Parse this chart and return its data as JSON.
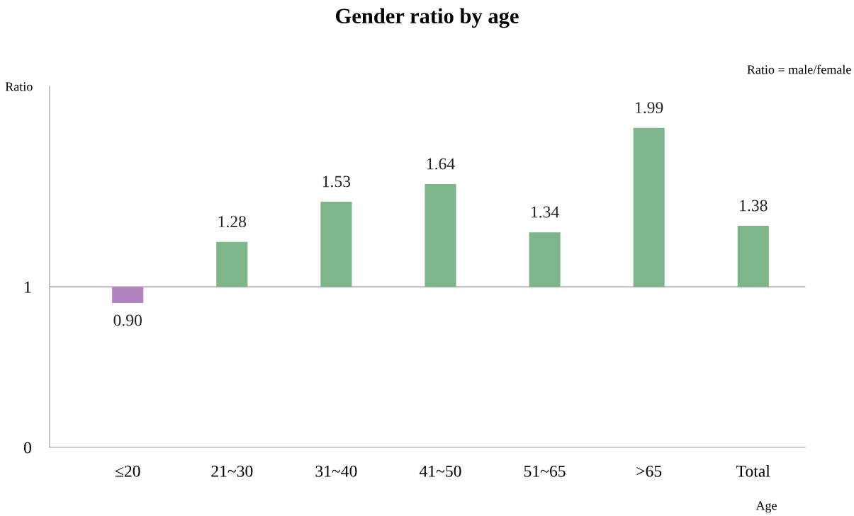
{
  "chart_data": {
    "type": "bar",
    "title": "Gender ratio by age",
    "xlabel": "Age",
    "ylabel": "Ratio",
    "annotations": [
      "Ratio = male/female"
    ],
    "categories": [
      "≤20",
      "21~30",
      "31~40",
      "41~50",
      "51~65",
      ">65",
      "Total"
    ],
    "base": [
      1,
      1,
      1,
      1,
      1,
      1,
      1
    ],
    "values": [
      -0.1,
      0.28,
      0.53,
      0.64,
      0.34,
      0.99,
      0.38
    ],
    "value_labels": [
      "0.90",
      "1.28",
      "1.53",
      "1.64",
      "1.34",
      "1.99",
      "1.38"
    ],
    "colors": [
      "#b283be",
      "#7fb58a",
      "#7fb58a",
      "#7fb58a",
      "#7fb58a",
      "#7fb58a",
      "#7fb58a"
    ],
    "ylim": [
      0,
      2.25
    ],
    "yticks": [
      0,
      1
    ],
    "ref_lines": [
      {
        "axis": "y",
        "value": 1,
        "color": "#a0a0a0"
      }
    ],
    "grid": false,
    "legend": false
  }
}
